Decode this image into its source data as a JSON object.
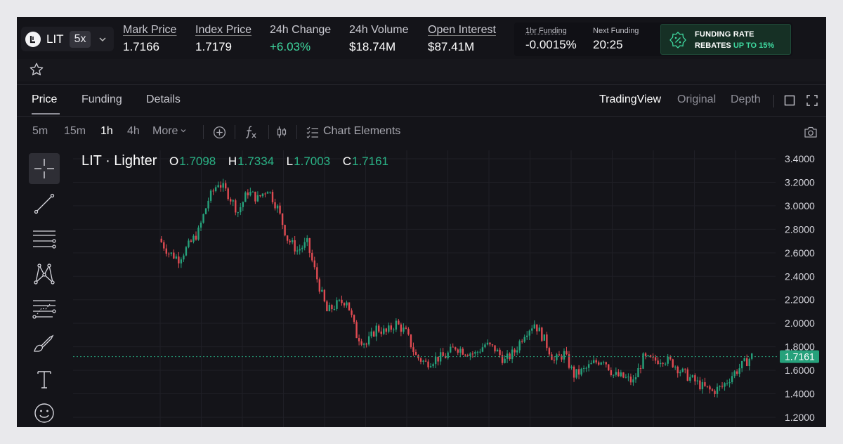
{
  "market": {
    "symbol": "LIT",
    "leverage": "5x"
  },
  "stats": [
    {
      "label": "Mark Price",
      "value": "1.7166"
    },
    {
      "label": "Index Price",
      "value": "1.7179"
    },
    {
      "label": "24h Change",
      "value": "+6.03%"
    },
    {
      "label": "24h Volume",
      "value": "$18.74M"
    },
    {
      "label": "Open Interest",
      "value": "$87.41M"
    }
  ],
  "funding": {
    "hourly_label": "1hr Funding",
    "hourly_value": "-0.0015%",
    "next_label": "Next Funding",
    "next_value": "20:25",
    "rebate_line1": "FUNDING RATE",
    "rebate_line2_prefix": "REBATES ",
    "rebate_line2_highlight": "UP TO 15%"
  },
  "tabs": [
    "Price",
    "Funding",
    "Details"
  ],
  "views": [
    "TradingView",
    "Original",
    "Depth"
  ],
  "timeframes": [
    "5m",
    "15m",
    "1h",
    "4h",
    "More"
  ],
  "active_timeframe": "1h",
  "toolbar": {
    "chart_elements_label": "Chart Elements"
  },
  "icons": [
    "star-icon",
    "crosshair-icon",
    "trend-line-icon",
    "horizontal-lines-icon",
    "pattern-icon",
    "fib-icon",
    "brush-icon",
    "text-icon",
    "emoji-icon",
    "add-indicator-icon",
    "fx-icon",
    "candle-type-icon",
    "camera-icon",
    "layout-icon",
    "fullscreen-icon"
  ],
  "legend": {
    "title": "LIT · Lighter",
    "o_label": "O",
    "o": "1.7098",
    "h_label": "H",
    "h": "1.7334",
    "l_label": "L",
    "l": "1.7003",
    "c_label": "C",
    "c": "1.7161"
  },
  "colors": {
    "up": "#26a17b",
    "down": "#e04b52",
    "accent": "#3fd9a0"
  },
  "chart_data": {
    "type": "candlestick",
    "y_ticks": [
      "3.4000",
      "3.2000",
      "3.0000",
      "2.8000",
      "2.6000",
      "2.4000",
      "2.2000",
      "2.0000",
      "1.8000",
      "1.6000",
      "1.4000",
      "1.2000"
    ],
    "ylim": [
      1.2,
      3.4
    ],
    "last_price": 1.7161,
    "last_price_label": "1.7161",
    "close_path": [
      [
        0,
        2.72
      ],
      [
        4,
        2.6
      ],
      [
        8,
        2.55
      ],
      [
        12,
        2.66
      ],
      [
        16,
        2.78
      ],
      [
        20,
        3.05
      ],
      [
        24,
        3.2
      ],
      [
        28,
        3.1
      ],
      [
        32,
        2.95
      ],
      [
        36,
        3.12
      ],
      [
        40,
        3.06
      ],
      [
        44,
        3.15
      ],
      [
        48,
        2.98
      ],
      [
        52,
        2.72
      ],
      [
        56,
        2.62
      ],
      [
        60,
        2.68
      ],
      [
        64,
        2.38
      ],
      [
        68,
        2.1
      ],
      [
        72,
        2.16
      ],
      [
        76,
        2.2
      ],
      [
        80,
        1.9
      ],
      [
        84,
        1.82
      ],
      [
        88,
        1.96
      ],
      [
        92,
        1.92
      ],
      [
        96,
        2.0
      ],
      [
        100,
        1.92
      ],
      [
        104,
        1.72
      ],
      [
        108,
        1.66
      ],
      [
        112,
        1.7
      ],
      [
        116,
        1.72
      ],
      [
        120,
        1.8
      ],
      [
        124,
        1.76
      ],
      [
        128,
        1.74
      ],
      [
        132,
        1.82
      ],
      [
        136,
        1.78
      ],
      [
        140,
        1.68
      ],
      [
        144,
        1.76
      ],
      [
        148,
        1.92
      ],
      [
        152,
        2.0
      ],
      [
        156,
        1.86
      ],
      [
        160,
        1.68
      ],
      [
        164,
        1.74
      ],
      [
        168,
        1.56
      ],
      [
        172,
        1.6
      ],
      [
        176,
        1.66
      ],
      [
        180,
        1.7
      ],
      [
        184,
        1.56
      ],
      [
        188,
        1.54
      ],
      [
        192,
        1.5
      ],
      [
        196,
        1.7
      ],
      [
        200,
        1.68
      ],
      [
        204,
        1.7
      ],
      [
        208,
        1.66
      ],
      [
        212,
        1.58
      ],
      [
        216,
        1.52
      ],
      [
        220,
        1.46
      ],
      [
        224,
        1.42
      ],
      [
        228,
        1.46
      ],
      [
        232,
        1.56
      ],
      [
        236,
        1.64
      ],
      [
        240,
        1.72
      ]
    ]
  }
}
